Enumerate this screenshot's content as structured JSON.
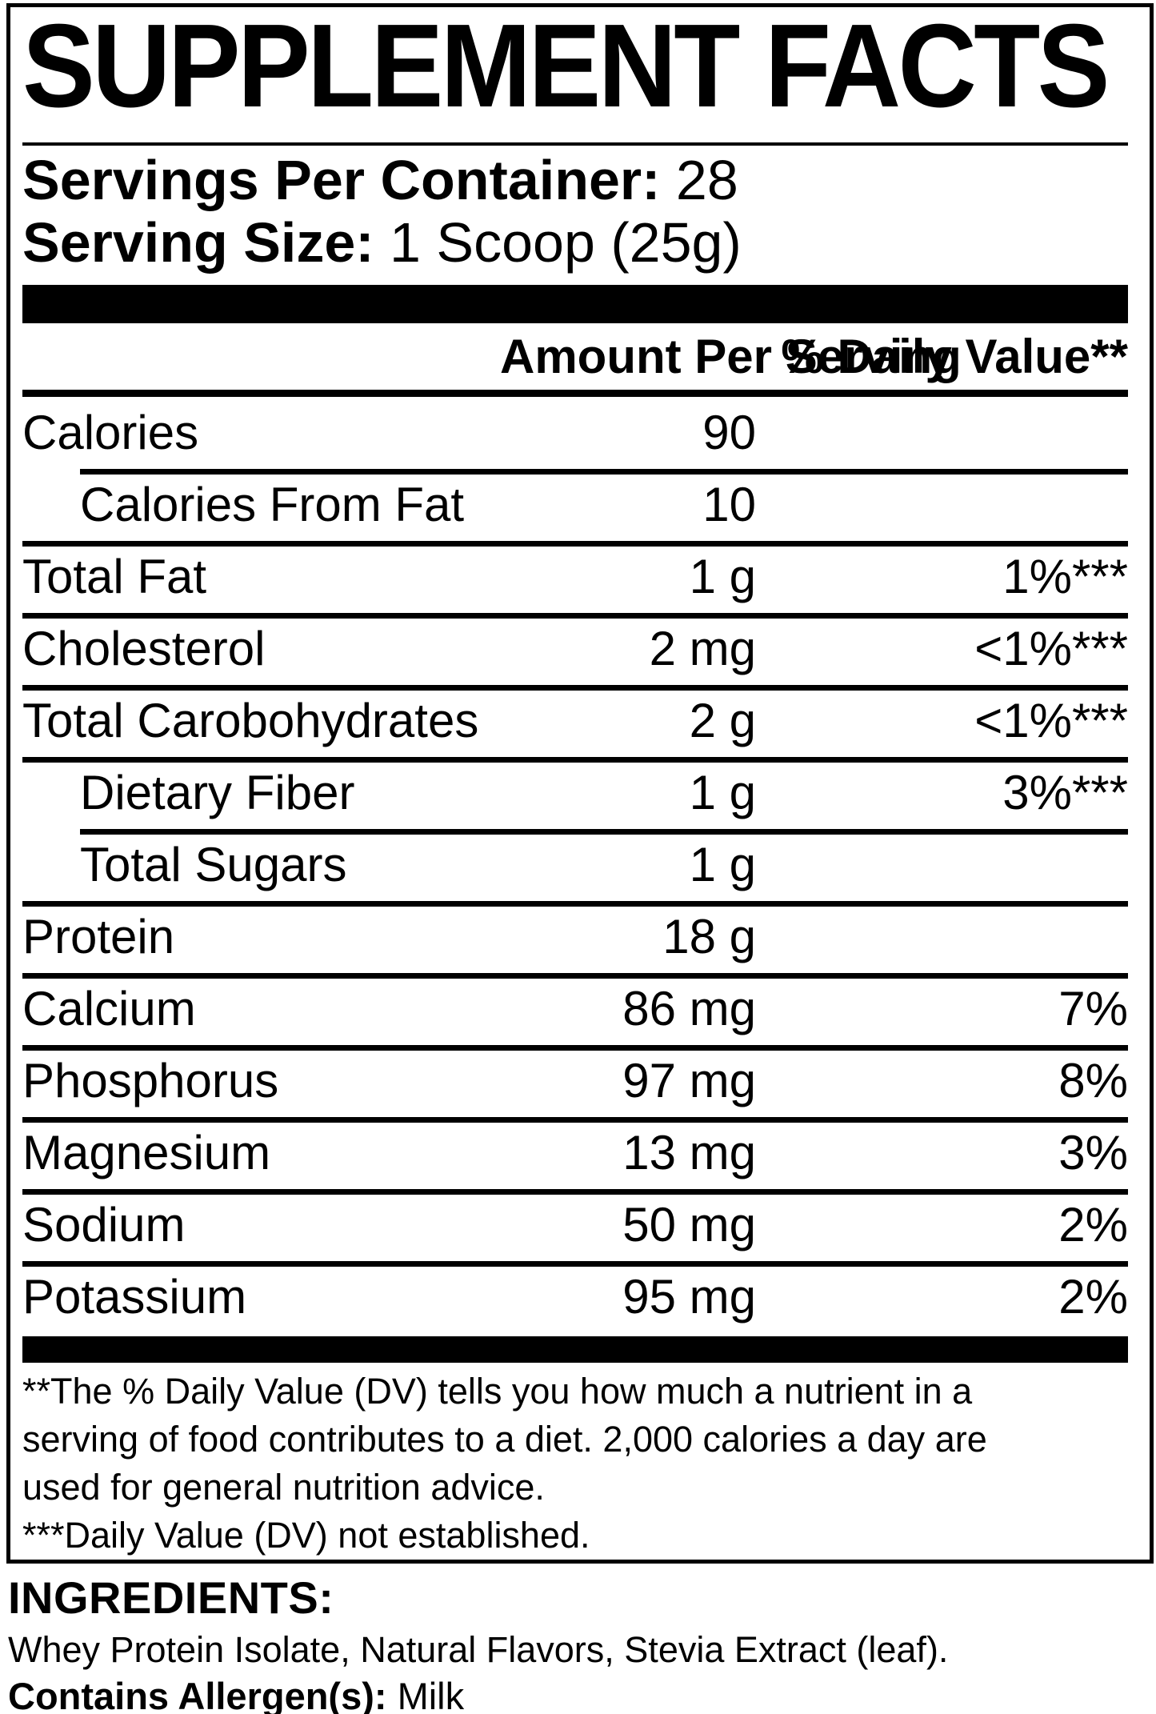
{
  "title": "SUPPLEMENT FACTS",
  "serving_info": {
    "servings_per_container_label": "Servings Per Container:",
    "servings_per_container_value": "28",
    "serving_size_label": "Serving Size:",
    "serving_size_value": "1 Scoop (25g)"
  },
  "table": {
    "header": {
      "amount_label": "Amount Per Serving",
      "dv_label": "% Daily Value**"
    },
    "rows": [
      {
        "name": "Calories",
        "amount": "90",
        "dv": "",
        "indent": false,
        "sep": "none"
      },
      {
        "name": "Calories From Fat",
        "amount": "10",
        "dv": "",
        "indent": true,
        "sep": "indent"
      },
      {
        "name": "Total Fat",
        "amount": "1 g",
        "dv": "1%***",
        "indent": false,
        "sep": "full"
      },
      {
        "name": "Cholesterol",
        "amount": "2 mg",
        "dv": "<1%***",
        "indent": false,
        "sep": "full"
      },
      {
        "name": "Total Carobohydrates",
        "amount": "2 g",
        "dv": "<1%***",
        "indent": false,
        "sep": "full"
      },
      {
        "name": "Dietary Fiber",
        "amount": "1 g",
        "dv": "3%***",
        "indent": true,
        "sep": "full"
      },
      {
        "name": "Total Sugars",
        "amount": "1 g",
        "dv": "",
        "indent": true,
        "sep": "indent"
      },
      {
        "name": "Protein",
        "amount": "18 g",
        "dv": "",
        "indent": false,
        "sep": "full"
      },
      {
        "name": "Calcium",
        "amount": "86 mg",
        "dv": "7%",
        "indent": false,
        "sep": "full"
      },
      {
        "name": "Phosphorus",
        "amount": "97 mg",
        "dv": "8%",
        "indent": false,
        "sep": "full"
      },
      {
        "name": "Magnesium",
        "amount": "13 mg",
        "dv": "3%",
        "indent": false,
        "sep": "full"
      },
      {
        "name": "Sodium",
        "amount": "50 mg",
        "dv": "2%",
        "indent": false,
        "sep": "full"
      },
      {
        "name": "Potassium",
        "amount": "95 mg",
        "dv": "2%",
        "indent": false,
        "sep": "full"
      }
    ]
  },
  "footnote_lines": [
    "**The % Daily Value (DV) tells you how much a nutrient in a",
    "serving of food contributes to a diet. 2,000 calories a day are",
    "used for general nutrition advice.",
    "***Daily Value (DV) not established."
  ],
  "ingredients": {
    "heading": "INGREDIENTS:",
    "list": "Whey Protein Isolate, Natural Flavors, Stevia Extract (leaf).",
    "allergen_label": "Contains Allergen(s):",
    "allergen_value": "Milk"
  },
  "colors": {
    "ink": "#000000",
    "background": "#ffffff"
  }
}
